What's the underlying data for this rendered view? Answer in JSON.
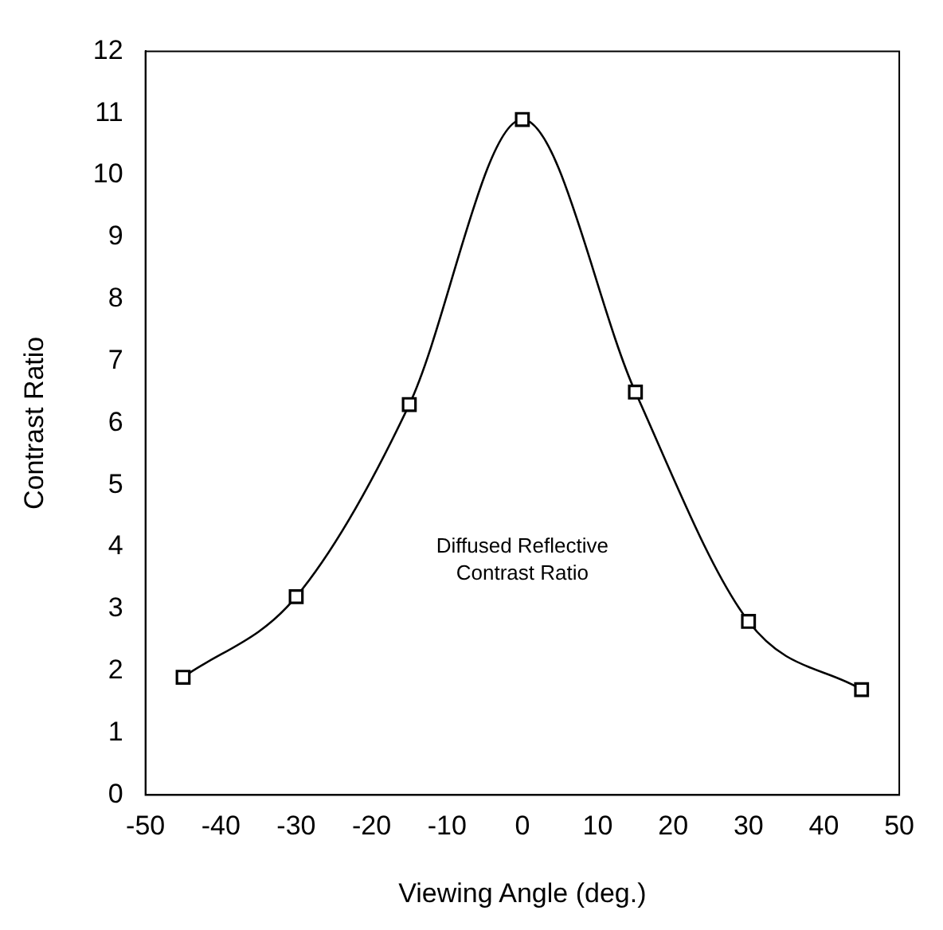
{
  "chart_data": {
    "type": "line",
    "xlabel": "Viewing Angle (deg.)",
    "ylabel": "Contrast Ratio",
    "x": [
      -45,
      -30,
      -15,
      0,
      15,
      30,
      45
    ],
    "series": [
      {
        "color": "#000000",
        "values": [
          1.9,
          3.2,
          6.3,
          10.9,
          6.5,
          2.8,
          1.7
        ]
      }
    ],
    "xlim": [
      -50,
      50
    ],
    "xticks": [
      -50,
      -40,
      -30,
      -20,
      -10,
      0,
      10,
      20,
      30,
      40,
      50
    ],
    "ylim": [
      0,
      12
    ],
    "yticks": [
      0,
      1,
      2,
      3,
      4,
      5,
      6,
      7,
      8,
      9,
      10,
      11,
      12
    ],
    "marker": "square",
    "grid": false,
    "legend": false,
    "annotations": [
      "Diffused Reflective\nContrast Ratio"
    ]
  }
}
